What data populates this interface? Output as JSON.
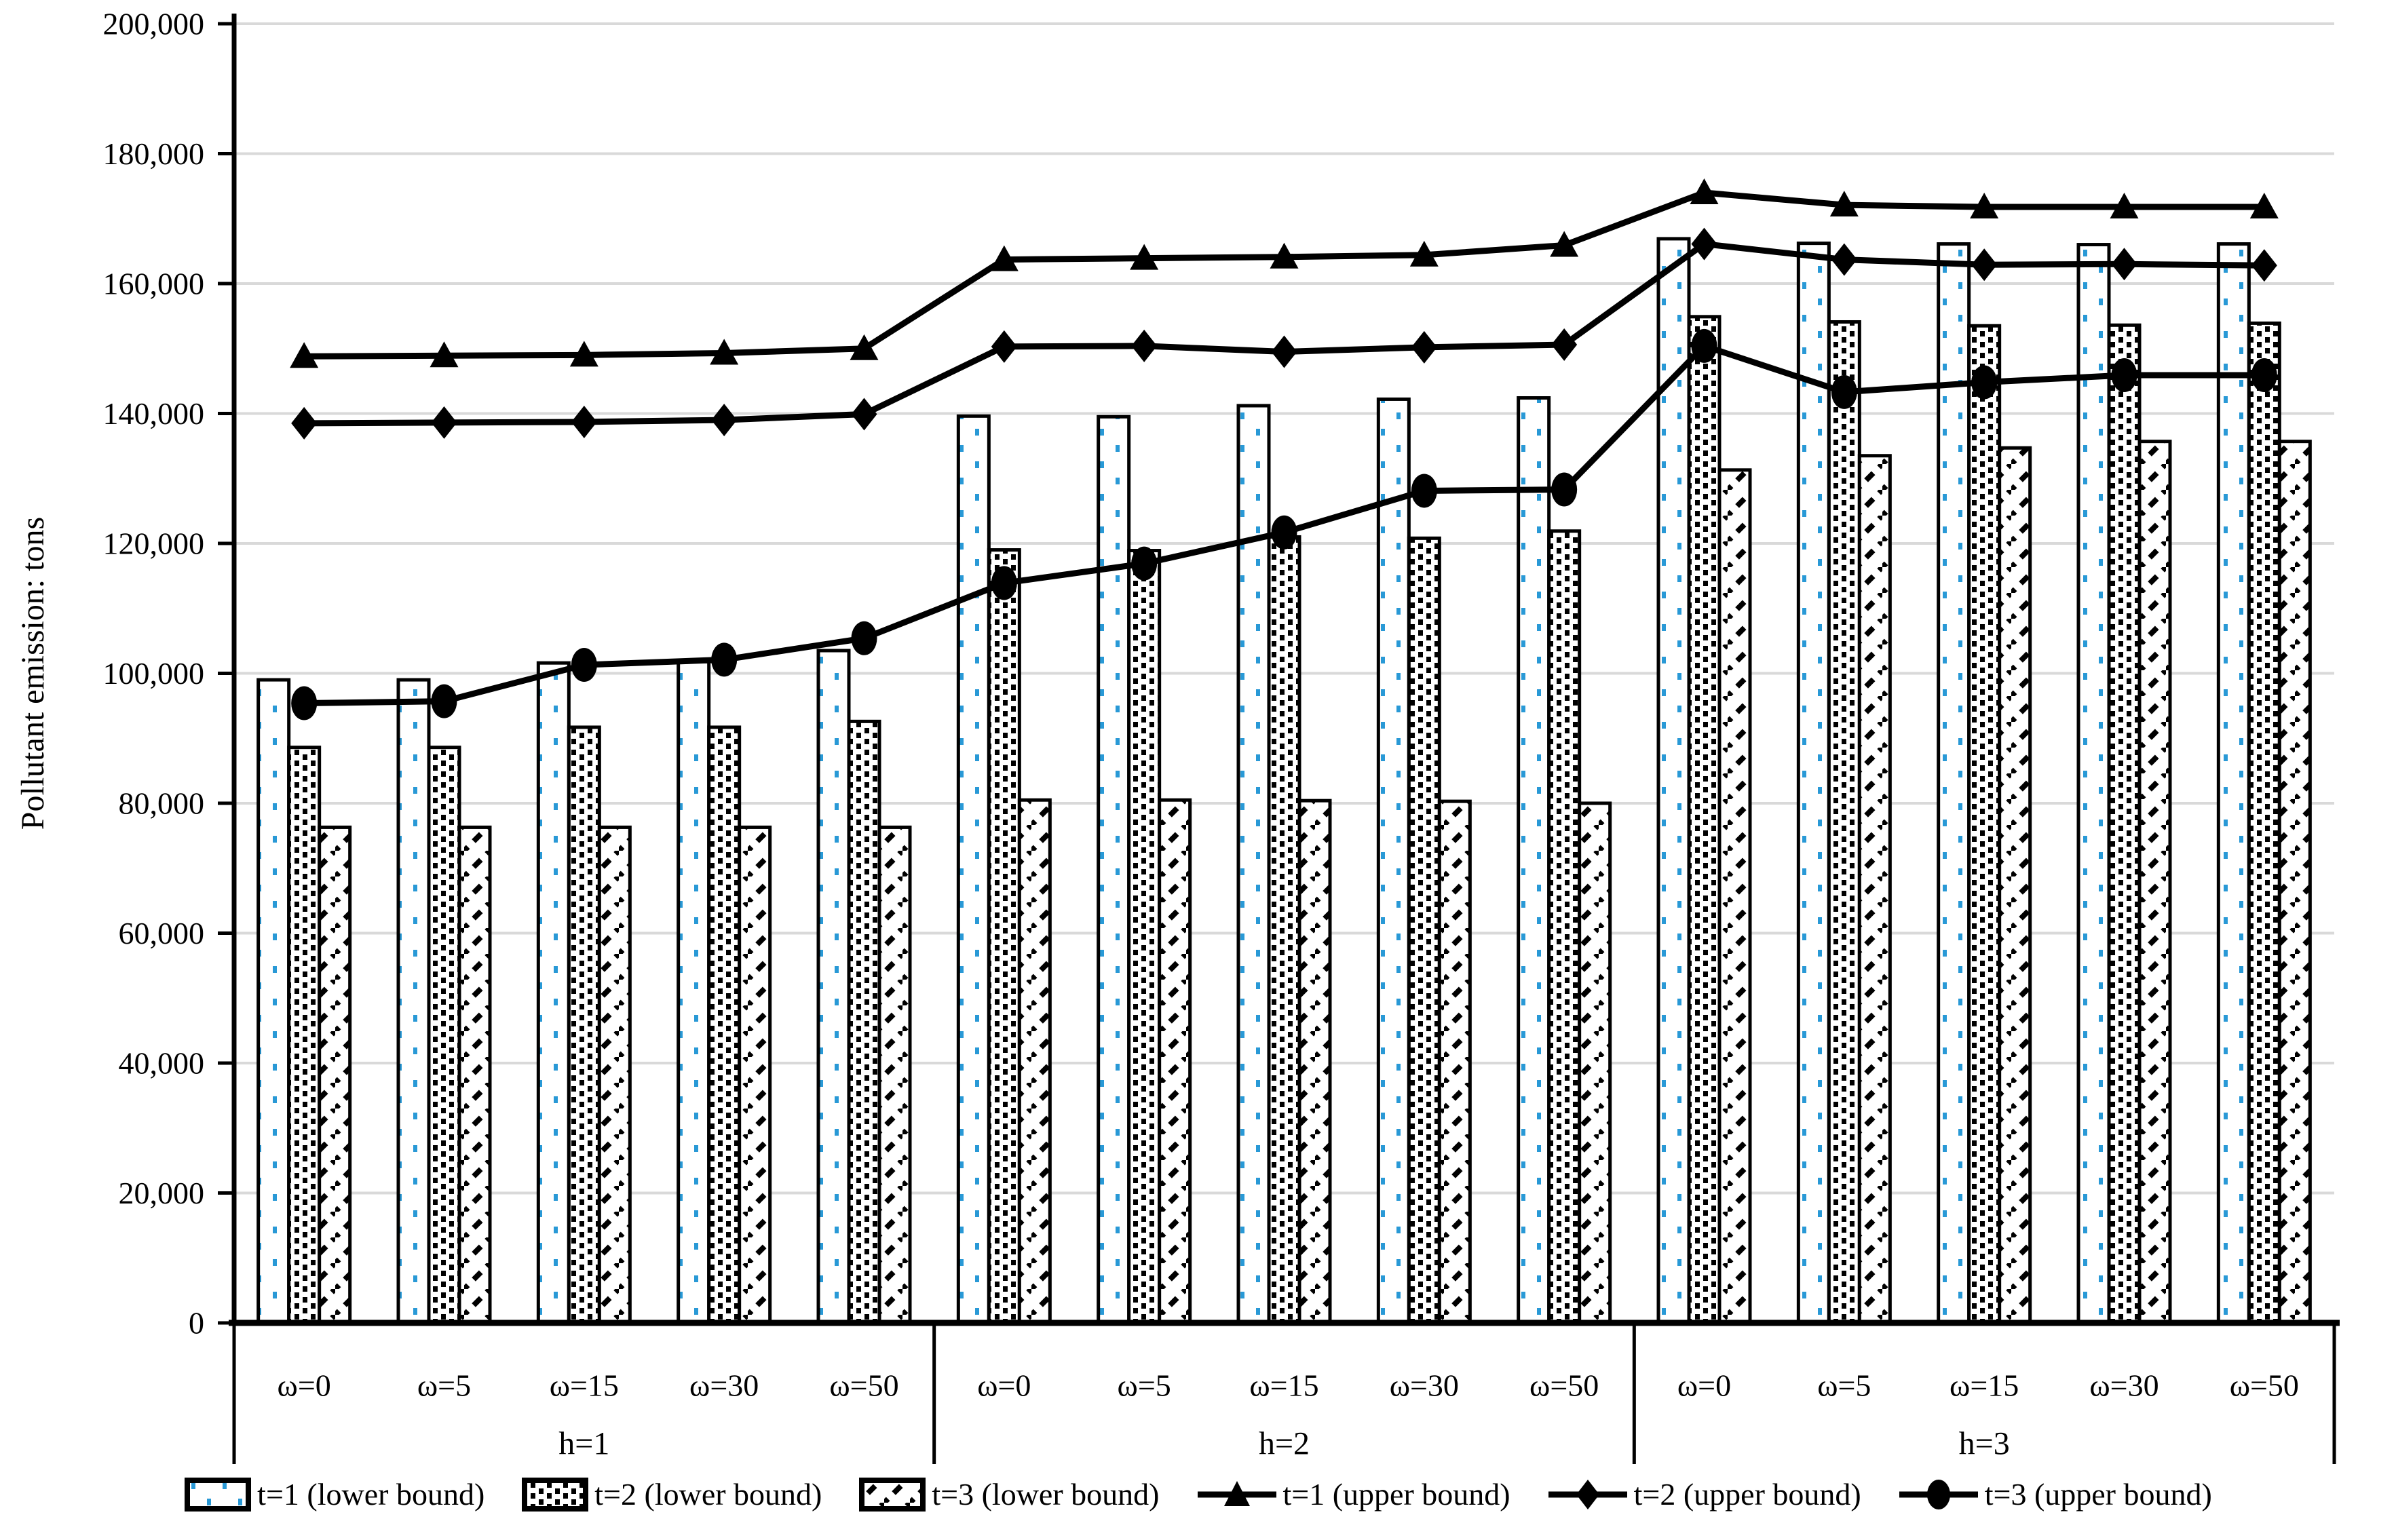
{
  "y_axis": {
    "title": "Pollutant emission: tons",
    "min": 0,
    "max": 200000,
    "step": 20000,
    "tick_labels": [
      "0",
      "20,000",
      "40,000",
      "60,000",
      "80,000",
      "100,000",
      "120,000",
      "140,000",
      "160,000",
      "180,000",
      "200,000"
    ]
  },
  "x_axis": {
    "category_labels": [
      "ω=0",
      "ω=5",
      "ω=15",
      "ω=30",
      "ω=50"
    ],
    "group_labels": [
      "h=1",
      "h=2",
      "h=3"
    ]
  },
  "legend": {
    "items": [
      {
        "label": "t=1 (lower bound)",
        "swatch": "bar-blue-dots"
      },
      {
        "label": "t=2 (lower bound)",
        "swatch": "bar-black-dots"
      },
      {
        "label": "t=3 (lower bound)",
        "swatch": "bar-diagonal-dashes"
      },
      {
        "label": "t=1 (upper bound)",
        "swatch": "line-triangle"
      },
      {
        "label": "t=2 (upper bound)",
        "swatch": "line-diamond"
      },
      {
        "label": "t=3 (upper bound)",
        "swatch": "line-circle"
      }
    ]
  },
  "chart_data": {
    "type": "bar+line",
    "title": "",
    "xlabel": "",
    "ylabel": "Pollutant emission: tons",
    "ylim": [
      0,
      200000
    ],
    "ytick_step": 20000,
    "grid": true,
    "legend_position": "bottom",
    "groups": [
      "h=1",
      "h=2",
      "h=3"
    ],
    "categories": [
      "ω=0",
      "ω=5",
      "ω=15",
      "ω=30",
      "ω=50"
    ],
    "bar_series": [
      {
        "name": "t=1 (lower bound)",
        "pattern": "blue-dots",
        "values": [
          [
            99000,
            99000,
            101600,
            101800,
            103500
          ],
          [
            139600,
            139500,
            141200,
            142200,
            142400
          ],
          [
            166900,
            166200,
            166100,
            166000,
            166100
          ]
        ]
      },
      {
        "name": "t=2 (lower bound)",
        "pattern": "black-dots",
        "values": [
          [
            88600,
            88600,
            91700,
            91700,
            92600
          ],
          [
            119000,
            118900,
            121000,
            120800,
            121900
          ],
          [
            154900,
            154100,
            153500,
            153600,
            153900
          ]
        ]
      },
      {
        "name": "t=3 (lower bound)",
        "pattern": "diag",
        "values": [
          [
            76300,
            76300,
            76300,
            76300,
            76300
          ],
          [
            80500,
            80500,
            80400,
            80300,
            80000
          ],
          [
            131300,
            133500,
            134700,
            135700,
            135700
          ]
        ]
      }
    ],
    "line_series": [
      {
        "name": "t=1 (upper bound)",
        "marker": "triangle",
        "values": [
          [
            148800,
            148900,
            149000,
            149300,
            150000
          ],
          [
            163700,
            163900,
            164100,
            164400,
            165900
          ],
          [
            174000,
            172100,
            171800,
            171800,
            171800
          ]
        ]
      },
      {
        "name": "t=2 (upper bound)",
        "marker": "diamond",
        "values": [
          [
            138500,
            138600,
            138700,
            139000,
            139900
          ],
          [
            150300,
            150400,
            149500,
            150200,
            150600
          ],
          [
            166100,
            163700,
            162900,
            163000,
            162800
          ]
        ]
      },
      {
        "name": "t=3 (upper bound)",
        "marker": "circle",
        "values": [
          [
            95400,
            95700,
            101300,
            102100,
            105400
          ],
          [
            113900,
            116900,
            121700,
            128100,
            128300
          ],
          [
            150400,
            143300,
            144800,
            145900,
            145900
          ]
        ]
      }
    ],
    "colors": {
      "bar_dot_blue": "#2999D6",
      "line": "#000000",
      "gridline": "#D9D9D9",
      "bar_border": "#000000",
      "background": "#FFFFFF"
    }
  }
}
